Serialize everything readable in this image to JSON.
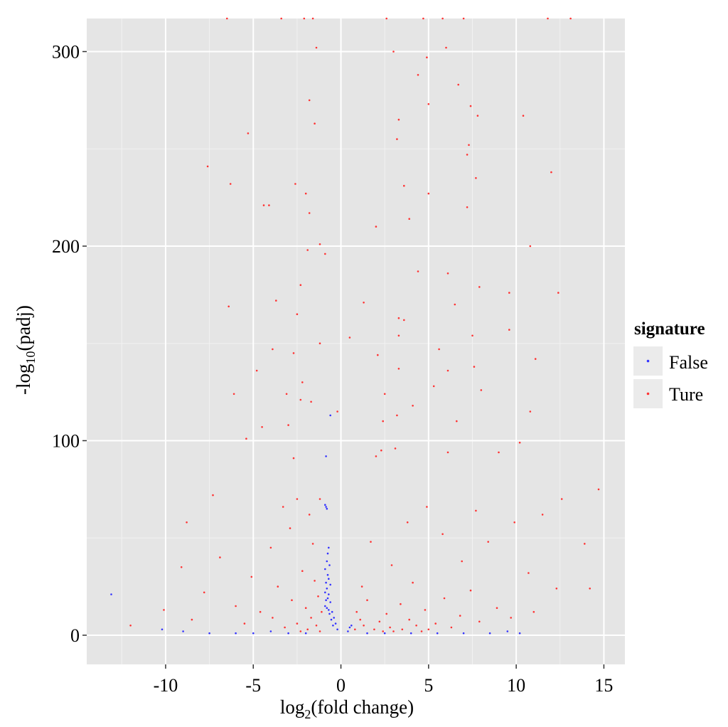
{
  "chart_data": {
    "type": "scatter",
    "title": "",
    "xlabel": {
      "prefix": "log",
      "sub": "2",
      "suffix": "(fold change)"
    },
    "ylabel": {
      "prefix": "-log",
      "sub": "10",
      "suffix": "(padj)"
    },
    "xlim": [
      -14.5,
      16.2
    ],
    "ylim": [
      -15,
      317
    ],
    "x_ticks": [
      -10,
      -5,
      0,
      5,
      10,
      15
    ],
    "x_tick_labels": [
      "-10",
      "-5",
      "0",
      "5",
      "10",
      "15"
    ],
    "y_ticks": [
      0,
      100,
      200,
      300
    ],
    "y_tick_labels": [
      "0",
      "100",
      "200",
      "300"
    ],
    "grid": true,
    "background": "#e5e5e5",
    "legend": {
      "title": "signature",
      "placement": "right",
      "entries": [
        {
          "label": "False",
          "color": "#3333ff"
        },
        {
          "label": "Ture",
          "color": "#ff3333"
        }
      ]
    },
    "series": [
      {
        "name": "False",
        "color": "#3333ff",
        "points": [
          [
            -0.9,
            67
          ],
          [
            -0.85,
            66
          ],
          [
            -0.8,
            65
          ],
          [
            -0.6,
            113
          ],
          [
            -0.85,
            92
          ],
          [
            -0.7,
            45
          ],
          [
            -0.75,
            42
          ],
          [
            -0.8,
            38
          ],
          [
            -0.65,
            36
          ],
          [
            -0.9,
            34
          ],
          [
            -0.75,
            31
          ],
          [
            -0.7,
            29
          ],
          [
            -0.85,
            27
          ],
          [
            -0.6,
            26
          ],
          [
            -0.8,
            24
          ],
          [
            -0.9,
            22
          ],
          [
            -0.7,
            21
          ],
          [
            -0.75,
            19
          ],
          [
            -0.85,
            18
          ],
          [
            -0.6,
            17
          ],
          [
            -0.9,
            15
          ],
          [
            -0.8,
            14
          ],
          [
            -0.7,
            13
          ],
          [
            -0.5,
            12
          ],
          [
            -0.65,
            11
          ],
          [
            -0.4,
            9
          ],
          [
            -0.55,
            8
          ],
          [
            -0.3,
            6
          ],
          [
            -0.45,
            5
          ],
          [
            -0.2,
            3
          ],
          [
            0.5,
            4
          ],
          [
            0.6,
            5
          ],
          [
            0.4,
            2
          ],
          [
            -13.1,
            21
          ],
          [
            -10.2,
            3
          ],
          [
            -9.0,
            2
          ],
          [
            -7.5,
            1
          ],
          [
            -6.0,
            1
          ],
          [
            -5.0,
            1
          ],
          [
            -4.0,
            2
          ],
          [
            -3.0,
            1
          ],
          [
            -2.0,
            1
          ],
          [
            1.5,
            1
          ],
          [
            2.5,
            1
          ],
          [
            4.0,
            1
          ],
          [
            5.5,
            1
          ],
          [
            7.0,
            1
          ],
          [
            8.5,
            1
          ],
          [
            9.5,
            2
          ],
          [
            10.2,
            1
          ]
        ]
      },
      {
        "name": "Ture",
        "color": "#ff3333",
        "points": [
          [
            -6.5,
            317
          ],
          [
            -3.4,
            317
          ],
          [
            -2.1,
            317
          ],
          [
            -1.6,
            317
          ],
          [
            2.6,
            317
          ],
          [
            4.7,
            317
          ],
          [
            5.8,
            317
          ],
          [
            7.0,
            317
          ],
          [
            11.8,
            317
          ],
          [
            13.1,
            317
          ],
          [
            -1.4,
            302
          ],
          [
            3.0,
            300
          ],
          [
            6.0,
            302
          ],
          [
            4.9,
            297
          ],
          [
            4.4,
            288
          ],
          [
            6.7,
            283
          ],
          [
            7.4,
            272
          ],
          [
            -1.8,
            275
          ],
          [
            5.0,
            273
          ],
          [
            7.8,
            267
          ],
          [
            10.4,
            267
          ],
          [
            3.3,
            265
          ],
          [
            -1.5,
            263
          ],
          [
            -5.3,
            258
          ],
          [
            3.2,
            255
          ],
          [
            7.3,
            252
          ],
          [
            7.2,
            247
          ],
          [
            -7.6,
            241
          ],
          [
            12.0,
            238
          ],
          [
            7.7,
            235
          ],
          [
            -6.3,
            232
          ],
          [
            3.6,
            231
          ],
          [
            -2.6,
            232
          ],
          [
            5.0,
            227
          ],
          [
            -2.0,
            227
          ],
          [
            -4.4,
            221
          ],
          [
            -4.1,
            221
          ],
          [
            7.2,
            220
          ],
          [
            -1.8,
            217
          ],
          [
            3.9,
            214
          ],
          [
            2.0,
            210
          ],
          [
            -1.2,
            201
          ],
          [
            10.8,
            200
          ],
          [
            -0.9,
            196
          ],
          [
            -1.9,
            198
          ],
          [
            4.4,
            187
          ],
          [
            6.1,
            186
          ],
          [
            -2.3,
            180
          ],
          [
            7.9,
            179
          ],
          [
            9.6,
            176
          ],
          [
            12.4,
            176
          ],
          [
            -3.7,
            172
          ],
          [
            -6.4,
            169
          ],
          [
            6.5,
            170
          ],
          [
            1.3,
            171
          ],
          [
            3.3,
            163
          ],
          [
            3.6,
            162
          ],
          [
            -2.5,
            165
          ],
          [
            9.6,
            157
          ],
          [
            11.1,
            142
          ],
          [
            7.5,
            154
          ],
          [
            3.3,
            154
          ],
          [
            0.5,
            153
          ],
          [
            -1.2,
            150
          ],
          [
            -3.9,
            147
          ],
          [
            5.6,
            147
          ],
          [
            -2.7,
            145
          ],
          [
            2.1,
            144
          ],
          [
            7.6,
            138
          ],
          [
            6.1,
            136
          ],
          [
            -4.8,
            136
          ],
          [
            3.3,
            137
          ],
          [
            5.3,
            128
          ],
          [
            -2.2,
            130
          ],
          [
            8.0,
            126
          ],
          [
            -6.1,
            124
          ],
          [
            -3.1,
            124
          ],
          [
            2.5,
            124
          ],
          [
            -2.3,
            121
          ],
          [
            -1.7,
            120
          ],
          [
            4.1,
            118
          ],
          [
            -0.2,
            115
          ],
          [
            10.8,
            115
          ],
          [
            3.2,
            113
          ],
          [
            6.6,
            110
          ],
          [
            -3.0,
            108
          ],
          [
            -4.5,
            107
          ],
          [
            -5.4,
            101
          ],
          [
            2.4,
            110
          ],
          [
            10.2,
            99
          ],
          [
            -2.7,
            91
          ],
          [
            2.3,
            95
          ],
          [
            3.1,
            96
          ],
          [
            2.0,
            92
          ],
          [
            6.1,
            94
          ],
          [
            9.0,
            94
          ],
          [
            -8.8,
            58
          ],
          [
            -7.3,
            72
          ],
          [
            -2.5,
            70
          ],
          [
            -1.2,
            70
          ],
          [
            14.7,
            75
          ],
          [
            12.6,
            70
          ],
          [
            -3.3,
            66
          ],
          [
            -1.8,
            62
          ],
          [
            4.9,
            66
          ],
          [
            7.7,
            64
          ],
          [
            -2.9,
            55
          ],
          [
            3.8,
            58
          ],
          [
            9.9,
            58
          ],
          [
            11.5,
            62
          ],
          [
            -6.9,
            40
          ],
          [
            -4.0,
            45
          ],
          [
            -1.6,
            47
          ],
          [
            1.7,
            48
          ],
          [
            5.8,
            52
          ],
          [
            8.4,
            48
          ],
          [
            13.9,
            47
          ],
          [
            -9.1,
            35
          ],
          [
            -5.1,
            30
          ],
          [
            -2.2,
            33
          ],
          [
            2.9,
            36
          ],
          [
            6.9,
            38
          ],
          [
            10.7,
            32
          ],
          [
            14.2,
            24
          ],
          [
            -7.8,
            22
          ],
          [
            -3.6,
            25
          ],
          [
            -1.5,
            28
          ],
          [
            1.2,
            25
          ],
          [
            4.1,
            27
          ],
          [
            7.4,
            23
          ],
          [
            12.3,
            24
          ],
          [
            -10.1,
            13
          ],
          [
            -6.0,
            15
          ],
          [
            -2.8,
            18
          ],
          [
            -1.3,
            20
          ],
          [
            1.5,
            18
          ],
          [
            3.4,
            16
          ],
          [
            5.9,
            19
          ],
          [
            8.9,
            14
          ],
          [
            11.0,
            12
          ],
          [
            -4.6,
            12
          ],
          [
            -2.0,
            14
          ],
          [
            -1.1,
            12
          ],
          [
            0.9,
            12
          ],
          [
            2.6,
            11
          ],
          [
            4.8,
            13
          ],
          [
            6.8,
            10
          ],
          [
            9.7,
            9
          ],
          [
            -12.0,
            5
          ],
          [
            -8.5,
            8
          ],
          [
            -3.9,
            9
          ],
          [
            -1.7,
            9
          ],
          [
            1.1,
            8
          ],
          [
            2.2,
            7
          ],
          [
            3.9,
            8
          ],
          [
            5.4,
            6
          ],
          [
            7.9,
            7
          ],
          [
            -5.5,
            6
          ],
          [
            -2.5,
            6
          ],
          [
            -1.4,
            5
          ],
          [
            1.3,
            5
          ],
          [
            2.8,
            4
          ],
          [
            4.3,
            5
          ],
          [
            6.3,
            4
          ],
          [
            -3.2,
            4
          ],
          [
            -1.9,
            3
          ],
          [
            0.8,
            3
          ],
          [
            1.9,
            3
          ],
          [
            3.5,
            3
          ],
          [
            5.0,
            3
          ],
          [
            -2.3,
            2
          ],
          [
            -1.2,
            2
          ],
          [
            2.4,
            2
          ],
          [
            3.0,
            2
          ],
          [
            4.6,
            2
          ]
        ]
      }
    ]
  }
}
